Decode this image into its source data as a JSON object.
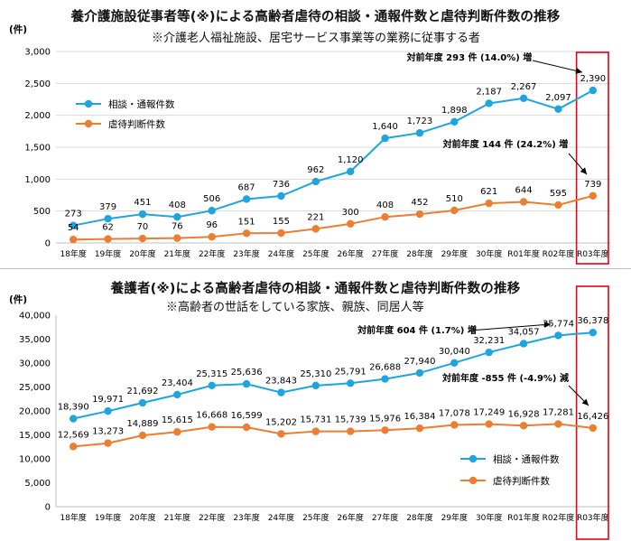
{
  "colors": {
    "series1": "#1ea5e0",
    "series2": "#ed7d31",
    "highlight": "#e60012",
    "grid": "#d9d9d9"
  },
  "chart_data": [
    {
      "type": "line",
      "title": "養介護施設従事者等(※)による高齢者虐待の相談・通報件数と虐待判断件数の推移",
      "subtitle": "※介護老人福祉施設、居宅サービス事業等の業務に従事する者",
      "ylabel": "(件)",
      "ylim": [
        0,
        3000
      ],
      "yticks": [
        "0",
        "500",
        "1,000",
        "1,500",
        "2,000",
        "2,500",
        "3,000"
      ],
      "yticks_values": [
        0,
        500,
        1000,
        1500,
        2000,
        2500,
        3000
      ],
      "grid": true,
      "legend_position": "left",
      "categories": [
        "18年度",
        "19年度",
        "20年度",
        "21年度",
        "22年度",
        "23年度",
        "24年度",
        "25年度",
        "26年度",
        "27年度",
        "28年度",
        "29年度",
        "30年度",
        "R01年度",
        "R02年度",
        "R03年度"
      ],
      "series": [
        {
          "name": "相談・通報件数",
          "values": [
            273,
            379,
            451,
            408,
            506,
            687,
            736,
            962,
            1120,
            1640,
            1723,
            1898,
            2187,
            2267,
            2097,
            2390
          ],
          "labels": [
            "273",
            "379",
            "451",
            "408",
            "506",
            "687",
            "736",
            "962",
            "1,120",
            "1,640",
            "1,723",
            "1,898",
            "2,187",
            "2,267",
            "2,097",
            "2,390"
          ]
        },
        {
          "name": "虐待判断件数",
          "values": [
            54,
            62,
            70,
            76,
            96,
            151,
            155,
            221,
            300,
            408,
            452,
            510,
            621,
            644,
            595,
            739
          ],
          "labels": [
            "54",
            "62",
            "70",
            "76",
            "96",
            "151",
            "155",
            "221",
            "300",
            "408",
            "452",
            "510",
            "621",
            "644",
            "595",
            "739"
          ]
        }
      ],
      "annotations": [
        "対前年度 293 件 (14.0%) 増",
        "対前年度 144 件 (24.2%) 増"
      ]
    },
    {
      "type": "line",
      "title": "養護者(※)による高齢者虐待の相談・通報件数と虐待判断件数の推移",
      "subtitle": "※高齢者の世話をしている家族、親族、同居人等",
      "ylabel": "(件)",
      "ylim": [
        0,
        40000
      ],
      "yticks": [
        "0",
        "5,000",
        "10,000",
        "15,000",
        "20,000",
        "25,000",
        "30,000",
        "35,000",
        "40,000"
      ],
      "yticks_values": [
        0,
        5000,
        10000,
        15000,
        20000,
        25000,
        30000,
        35000,
        40000
      ],
      "grid": false,
      "legend_position": "bottom-right",
      "categories": [
        "18年度",
        "19年度",
        "20年度",
        "21年度",
        "22年度",
        "23年度",
        "24年度",
        "25年度",
        "26年度",
        "27年度",
        "28年度",
        "29年度",
        "30年度",
        "R01年度",
        "R02年度",
        "R03年度"
      ],
      "series": [
        {
          "name": "相談・通報件数",
          "values": [
            18390,
            19971,
            21692,
            23404,
            25315,
            25636,
            23843,
            25310,
            25791,
            26688,
            27940,
            30040,
            32231,
            34057,
            35774,
            36378
          ],
          "labels": [
            "18,390",
            "19,971",
            "21,692",
            "23,404",
            "25,315",
            "25,636",
            "23,843",
            "25,310",
            "25,791",
            "26,688",
            "27,940",
            "30,040",
            "32,231",
            "34,057",
            "35,774",
            "36,378"
          ]
        },
        {
          "name": "虐待判断件数",
          "values": [
            12569,
            13273,
            14889,
            15615,
            16668,
            16599,
            15202,
            15731,
            15739,
            15976,
            16384,
            17078,
            17249,
            16928,
            17281,
            16426
          ],
          "labels": [
            "12,569",
            "13,273",
            "14,889",
            "15,615",
            "16,668",
            "16,599",
            "15,202",
            "15,731",
            "15,739",
            "15,976",
            "16,384",
            "17,078",
            "17,249",
            "16,928",
            "17,281",
            "16,426"
          ]
        }
      ],
      "annotations": [
        "対前年度 604 件 (1.7%) 増",
        "対前年度 -855 件 (-4.9%) 減"
      ]
    }
  ]
}
